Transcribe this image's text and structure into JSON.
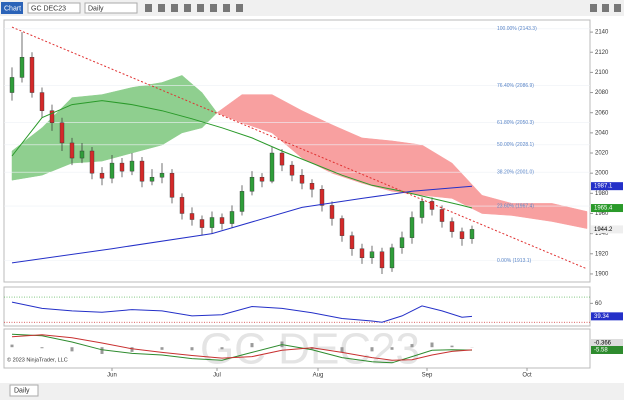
{
  "toolbar": {
    "tab": "Chart",
    "instrument": "GC DEC23",
    "interval": "Daily"
  },
  "watermark": "GC DEC23",
  "copyright": "© 2023 NinjaTrader, LLC",
  "bottom_tab": "Daily",
  "chart_data": [
    {
      "type": "candlestick",
      "x": [
        0,
        1,
        2,
        3,
        4,
        5,
        6,
        7,
        8,
        9,
        10,
        11,
        12,
        13,
        14,
        15,
        16,
        17,
        18,
        19,
        20,
        21,
        22,
        23,
        24,
        25,
        26,
        27,
        28,
        29,
        30,
        31,
        32,
        33,
        34,
        35,
        36,
        37,
        38,
        39,
        40,
        41,
        42,
        43,
        44,
        45,
        46
      ],
      "open": [
        2080,
        2095,
        2115,
        2080,
        2062,
        2050,
        2030,
        2015,
        2022,
        2000,
        1995,
        2010,
        2002,
        2012,
        1992,
        1996,
        2000,
        1976,
        1960,
        1954,
        1946,
        1956,
        1950,
        1962,
        1982,
        1996,
        1992,
        2020,
        2008,
        1998,
        1990,
        1984,
        1968,
        1955,
        1938,
        1925,
        1916,
        1922,
        1906,
        1926,
        1936,
        1956,
        1972,
        1964,
        1952,
        1942,
        1935
      ],
      "high": [
        2105,
        2140,
        2120,
        2085,
        2068,
        2055,
        2035,
        2030,
        2026,
        2006,
        2018,
        2015,
        2020,
        2016,
        2004,
        2010,
        2004,
        1980,
        1966,
        1958,
        1962,
        1960,
        1968,
        1988,
        2002,
        2000,
        2026,
        2024,
        2012,
        2004,
        1994,
        1988,
        1972,
        1958,
        1942,
        1930,
        1928,
        1926,
        1930,
        1942,
        1962,
        1976,
        1976,
        1968,
        1956,
        1946,
        1948
      ],
      "low": [
        2072,
        2090,
        2075,
        2055,
        2042,
        2022,
        2008,
        2010,
        1994,
        1988,
        1990,
        1996,
        1998,
        1986,
        1988,
        1990,
        1970,
        1954,
        1948,
        1938,
        1940,
        1944,
        1946,
        1958,
        1978,
        1986,
        1990,
        2002,
        1992,
        1984,
        1976,
        1962,
        1948,
        1932,
        1918,
        1910,
        1910,
        1900,
        1902,
        1920,
        1930,
        1950,
        1958,
        1946,
        1936,
        1928,
        1930
      ],
      "close": [
        2095,
        2115,
        2080,
        2062,
        2050,
        2030,
        2015,
        2022,
        2000,
        1995,
        2010,
        2002,
        2012,
        1992,
        1996,
        2000,
        1976,
        1960,
        1954,
        1946,
        1956,
        1950,
        1962,
        1982,
        1996,
        1992,
        2020,
        2008,
        1998,
        1990,
        1984,
        1968,
        1955,
        1938,
        1925,
        1916,
        1922,
        1906,
        1926,
        1936,
        1956,
        1972,
        1964,
        1952,
        1942,
        1935,
        1944.2
      ],
      "up_color": "#2f9e3a",
      "down_color": "#d42a2a",
      "last_badge": true,
      "xlim": [
        -0.8,
        57.8
      ],
      "xticks": [
        {
          "value": 10,
          "label": "Jun"
        },
        {
          "value": 20.5,
          "label": "Jul"
        },
        {
          "value": 30.6,
          "label": "Aug"
        },
        {
          "value": 41.5,
          "label": "Sep"
        },
        {
          "value": 51.5,
          "label": "Oct"
        }
      ],
      "ylim": [
        1892,
        2152
      ],
      "yticks": [
        2140,
        2120,
        2100,
        2080,
        2060,
        2040,
        2020,
        2000,
        1980,
        1960,
        1940,
        1920,
        1900
      ],
      "cloud": {
        "x": [
          0,
          3,
          6,
          9,
          12,
          15,
          17,
          19,
          20.5,
          23,
          26,
          29,
          32,
          35,
          38,
          41,
          44,
          47,
          50,
          54,
          57.5
        ],
        "span_a": [
          2022,
          2045,
          2075,
          2078,
          2085,
          2090,
          2097,
          2080,
          2060,
          2050,
          2040,
          2015,
          2000,
          1990,
          1982,
          1978,
          1975,
          1960,
          1958,
          1952,
          1945
        ],
        "span_b": [
          1993,
          1998,
          2010,
          2012,
          2020,
          2028,
          2040,
          2045,
          2060,
          2078,
          2078,
          2062,
          2048,
          2035,
          2032,
          2028,
          2010,
          1978,
          1970,
          1970,
          1962
        ],
        "up_color": "#8fcf8f",
        "down_color": "#f8a0a0"
      },
      "overlays": [
        {
          "kind": "line",
          "color": "#2a9a2a",
          "badge": true,
          "x": [
            0,
            3,
            6,
            9,
            12,
            15,
            18,
            21,
            24,
            27,
            30,
            33,
            36,
            39,
            42,
            45,
            46
          ],
          "values": [
            2017,
            2055,
            2068,
            2072,
            2068,
            2062,
            2054,
            2045,
            2035,
            2022,
            2010,
            1998,
            1988,
            1982,
            1975,
            1968,
            1965.4
          ]
        },
        {
          "kind": "line",
          "color": "#2430c8",
          "badge": true,
          "x": [
            0,
            10,
            20,
            29,
            35,
            40,
            46
          ],
          "values": [
            1911,
            1925,
            1940,
            1966,
            1975,
            1982,
            1987.1
          ]
        },
        {
          "kind": "dashed",
          "color": "#e03030",
          "badge": false,
          "x": [
            0,
            57.5
          ],
          "values": [
            2145,
            1905
          ]
        }
      ],
      "fib_color": "#5a86c8",
      "fib_levels": [
        {
          "price": 2143.3,
          "label": "100.00% (2143.3)"
        },
        {
          "price": 2086.9,
          "label": "76.40% (2086.9)"
        },
        {
          "price": 2050.3,
          "label": "61.80% (2050.3)"
        },
        {
          "price": 2028.1,
          "label": "50.00% (2028.1)"
        },
        {
          "price": 2001.0,
          "label": "38.20% (2001.0)"
        },
        {
          "price": 1967.4,
          "label": "23.60% (1967.4)"
        },
        {
          "price": 1913.1,
          "label": "0.00% (1913.1)"
        }
      ]
    },
    {
      "type": "line",
      "x": [
        0,
        3,
        6,
        9,
        12,
        15,
        18,
        21,
        24,
        27,
        30,
        33,
        36,
        37,
        39,
        41,
        43,
        45,
        46
      ],
      "values": [
        62,
        52,
        48,
        46,
        50,
        48,
        40,
        42,
        55,
        52,
        45,
        36,
        32,
        30,
        40,
        56,
        48,
        38,
        39.34
      ],
      "color": "#2430c8",
      "badge": true,
      "ylim": [
        24,
        86
      ],
      "yticks": [
        60
      ],
      "levels": [
        {
          "value": 70,
          "color": "#3aa83a"
        },
        {
          "value": 30,
          "color": "#d03030"
        }
      ]
    },
    {
      "type": "macd",
      "x": [
        0,
        3,
        6,
        9,
        12,
        15,
        18,
        21,
        24,
        27,
        30,
        33,
        36,
        38,
        40,
        42,
        44,
        46
      ],
      "macd": [
        25,
        22,
        10,
        -5,
        -12,
        -15,
        -22,
        -25,
        -10,
        5,
        -5,
        -20,
        -28,
        -30,
        -18,
        -6,
        -5,
        -5.58
      ],
      "signal": [
        20,
        24,
        18,
        8,
        -3,
        -10,
        -16,
        -21,
        -18,
        -6,
        -1,
        -10,
        -20,
        -25,
        -24,
        -15,
        -8,
        -5.21
      ],
      "histogram": [
        5,
        -2,
        -8,
        -13,
        -9,
        -5,
        -6,
        -4,
        8,
        11,
        -4,
        -10,
        -8,
        -5,
        6,
        9,
        3,
        -0.366
      ],
      "macd_color": "#2e8b2e",
      "signal_color": "#c83030",
      "hist_color": "#9a9a9a",
      "ylim": [
        -40,
        35
      ]
    }
  ]
}
